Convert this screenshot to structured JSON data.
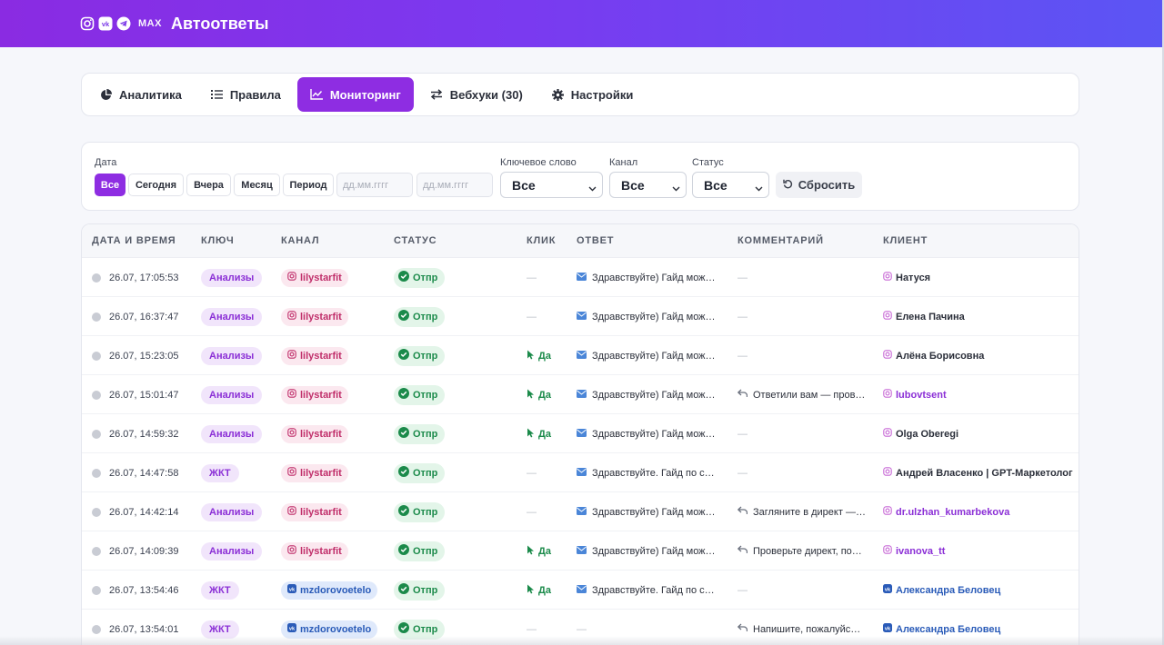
{
  "header": {
    "title": "Автоответы",
    "max_label": "MAX",
    "brand_icons": [
      "instagram-icon",
      "vk-icon",
      "telegram-icon"
    ]
  },
  "tabs": [
    {
      "label": "Аналитика",
      "icon": "pie-chart-icon",
      "active": false
    },
    {
      "label": "Правила",
      "icon": "list-icon",
      "active": false
    },
    {
      "label": "Мониторинг",
      "icon": "line-chart-icon",
      "active": true
    },
    {
      "label": "Вебхуки (30)",
      "icon": "exchange-icon",
      "active": false
    },
    {
      "label": "Настройки",
      "icon": "gear-icon",
      "active": false
    }
  ],
  "filters": {
    "date_label": "Дата",
    "date_buttons": [
      "Все",
      "Сегодня",
      "Вчера",
      "Месяц",
      "Период"
    ],
    "date_placeholder": "дд.мм.гггг",
    "keyword_label": "Ключевое слово",
    "keyword_value": "Все",
    "channel_label": "Канал",
    "channel_value": "Все",
    "status_label": "Статус",
    "status_value": "Все",
    "reset_label": "Сбросить"
  },
  "table": {
    "headers": [
      "ДАТА И ВРЕМЯ",
      "КЛЮЧ",
      "КАНАЛ",
      "СТАТУС",
      "КЛИК",
      "ОТВЕТ",
      "КОММЕНТАРИЙ",
      "КЛИЕНТ"
    ],
    "rows": [
      {
        "time": "26.07, 17:05:53",
        "keyword": "Анализы",
        "channel": "lilystarfit",
        "channel_type": "ig",
        "status": "Отпр",
        "click": "—",
        "reply": "Здравствуйте) Гайд мож…",
        "comment": "—",
        "client": "Натуся",
        "client_style": "plain"
      },
      {
        "time": "26.07, 16:37:47",
        "keyword": "Анализы",
        "channel": "lilystarfit",
        "channel_type": "ig",
        "status": "Отпр",
        "click": "—",
        "reply": "Здравствуйте) Гайд мож…",
        "comment": "—",
        "client": "Елена Пачина",
        "client_style": "plain"
      },
      {
        "time": "26.07, 15:23:05",
        "keyword": "Анализы",
        "channel": "lilystarfit",
        "channel_type": "ig",
        "status": "Отпр",
        "click": "Да",
        "reply": "Здравствуйте) Гайд мож…",
        "comment": "—",
        "client": "Алёна Борисовна",
        "client_style": "plain"
      },
      {
        "time": "26.07, 15:01:47",
        "keyword": "Анализы",
        "channel": "lilystarfit",
        "channel_type": "ig",
        "status": "Отпр",
        "click": "Да",
        "reply": "Здравствуйте) Гайд мож…",
        "comment": "Ответили вам — пров…",
        "client": "lubovtsent",
        "client_style": "purple"
      },
      {
        "time": "26.07, 14:59:32",
        "keyword": "Анализы",
        "channel": "lilystarfit",
        "channel_type": "ig",
        "status": "Отпр",
        "click": "Да",
        "reply": "Здравствуйте) Гайд мож…",
        "comment": "—",
        "client": "Olga Oberegi",
        "client_style": "plain"
      },
      {
        "time": "26.07, 14:47:58",
        "keyword": "ЖКТ",
        "channel": "lilystarfit",
        "channel_type": "ig",
        "status": "Отпр",
        "click": "—",
        "reply": "Здравствуйте. Гайд по с…",
        "comment": "—",
        "client": "Андрей Власенко | GPT-Маркетолог",
        "client_style": "plain"
      },
      {
        "time": "26.07, 14:42:14",
        "keyword": "Анализы",
        "channel": "lilystarfit",
        "channel_type": "ig",
        "status": "Отпр",
        "click": "—",
        "reply": "Здравствуйте) Гайд мож…",
        "comment": "Загляните в директ —…",
        "client": "dr.ulzhan_kumarbekova",
        "client_style": "purple"
      },
      {
        "time": "26.07, 14:09:39",
        "keyword": "Анализы",
        "channel": "lilystarfit",
        "channel_type": "ig",
        "status": "Отпр",
        "click": "Да",
        "reply": "Здравствуйте) Гайд мож…",
        "comment": "Проверьте директ, по…",
        "client": "ivanova_tt",
        "client_style": "purple"
      },
      {
        "time": "26.07, 13:54:46",
        "keyword": "ЖКТ",
        "channel": "mzdorovoetelo",
        "channel_type": "vk",
        "status": "Отпр",
        "click": "Да",
        "reply": "Здравствуйте. Гайд по с…",
        "comment": "—",
        "client": "Александра Беловец",
        "client_style": "blue"
      },
      {
        "time": "26.07, 13:54:01",
        "keyword": "ЖКТ",
        "channel": "mzdorovoetelo",
        "channel_type": "vk",
        "status": "Отпр",
        "click": "—",
        "reply": "—",
        "comment": "Напишите, пожалуйс…",
        "client": "Александра Беловец",
        "client_style": "blue"
      }
    ]
  }
}
